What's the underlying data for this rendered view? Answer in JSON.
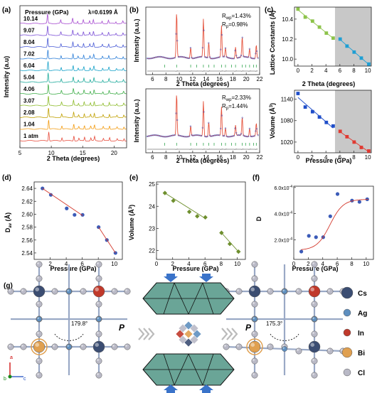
{
  "colors": {
    "green": "#8dc34a",
    "blue": "#1f9fd4",
    "darkblue": "#1f4ec9",
    "red": "#e03a32",
    "fitred": "#d43a2e",
    "olive": "#6e8f2e",
    "navy": "#3b5bb8",
    "teal": "#6aa597",
    "arrow": "#3a73c9",
    "gray_region": "#c8c8c8",
    "measured": "#2040c0",
    "calc": "#e5533d"
  },
  "icons": [
    "blue-arrow-down-icon",
    "blue-arrow-up-icon",
    "chevron-right-icon"
  ],
  "panels": {
    "a": {
      "label": "(a)"
    },
    "b": {
      "label": "(b)"
    },
    "c": {
      "label": "(c)"
    },
    "d": {
      "label": "(d)"
    },
    "e": {
      "label": "(e)"
    },
    "f": {
      "label": "(f)"
    },
    "g": {
      "label": "(g)"
    }
  },
  "chart_data": [
    {
      "id": "a",
      "type": "line",
      "title": "Pressure (GPa)",
      "annotation": "λ=0.6199 Å",
      "xlabel": "2 Theta (degrees)",
      "ylabel": "Intensity (a.u)",
      "xlim": [
        5,
        22
      ],
      "xticks": [
        5,
        10,
        15,
        20
      ],
      "peaks_2theta": [
        9.6,
        11.7,
        13.6,
        14.4,
        15.3,
        16.3,
        16.9,
        18.3,
        19.3,
        20.5,
        21.6
      ],
      "series": [
        {
          "name": "1 atm",
          "color": "#e74c3c"
        },
        {
          "name": "1.04",
          "color": "#f39c12"
        },
        {
          "name": "2.08",
          "color": "#c0a000"
        },
        {
          "name": "3.07",
          "color": "#8dbb2b"
        },
        {
          "name": "4.06",
          "color": "#3fae49"
        },
        {
          "name": "5.04",
          "color": "#1aa99a"
        },
        {
          "name": "6.04",
          "color": "#17a2c9"
        },
        {
          "name": "7.02",
          "color": "#2d7fd8"
        },
        {
          "name": "8.04",
          "color": "#4a5cd6"
        },
        {
          "name": "9.07",
          "color": "#7b4fd6"
        },
        {
          "name": "10.14",
          "color": "#a64bd0"
        }
      ]
    },
    {
      "id": "b-top",
      "type": "line",
      "xlabel": "",
      "ylabel": "Intensity (a.u.)",
      "xlim": [
        5,
        22
      ],
      "xticks": [
        6,
        8,
        10,
        12,
        14,
        16,
        18,
        20,
        22
      ],
      "rwp_label": "R",
      "rwp_sub": "wp",
      "rwp_val": "=1.43%",
      "rp_label": "R",
      "rp_sub": "p",
      "rp_val": "=0.98%"
    },
    {
      "id": "b-bottom",
      "type": "line",
      "xlabel": "2 Theta (degrees)",
      "ylabel": "Intensity (a.u.)",
      "xlim": [
        5,
        22
      ],
      "xticks": [
        6,
        8,
        10,
        12,
        14,
        16,
        18,
        20,
        22
      ],
      "rwp_label": "R",
      "rwp_sub": "wp",
      "rwp_val": "=2.33%",
      "rp_label": "R",
      "rp_sub": "p",
      "rp_val": "=1.44%"
    },
    {
      "id": "c-top",
      "type": "scatter",
      "xlabel": "",
      "ylabel": "Lattice Constants (Å)",
      "xlim": [
        -0.5,
        10.5
      ],
      "ylim": [
        9.93,
        10.52
      ],
      "xticks": [
        0,
        2,
        4,
        6,
        8,
        10
      ],
      "yticks": [
        10.0,
        10.2,
        10.4
      ],
      "shaded_from": 5.3,
      "series": [
        {
          "color": "#8dc34a",
          "x": [
            0,
            1.04,
            2.08,
            3.07,
            4.06,
            5.04
          ],
          "y": [
            10.5,
            10.42,
            10.38,
            10.32,
            10.26,
            10.21
          ]
        },
        {
          "color": "#1f9fd4",
          "x": [
            6.04,
            7.02,
            8.04,
            9.07,
            10.14
          ],
          "y": [
            10.2,
            10.13,
            10.07,
            10.01,
            9.95
          ]
        }
      ]
    },
    {
      "id": "c-bottom",
      "type": "scatter",
      "xlabel": "Pressure (GPa)",
      "ylabel": "Volume (Å3)",
      "ylabel_text": "Volume (Å",
      "ylabel_sup": "3",
      "ylabel_tail": ")",
      "xlim": [
        -0.5,
        10.5
      ],
      "ylim": [
        990,
        1165
      ],
      "xticks": [
        0,
        2,
        4,
        6,
        8,
        10
      ],
      "yticks": [
        1020,
        1080,
        1140
      ],
      "shaded_from": 5.3,
      "series": [
        {
          "color": "#1f4ec9",
          "x": [
            0,
            1.04,
            2.08,
            3.07,
            4.06,
            5.04
          ],
          "y": [
            1156,
            1118,
            1105,
            1090,
            1075,
            1065
          ]
        },
        {
          "color": "#e03a32",
          "x": [
            6.04,
            7.02,
            8.04,
            9.07,
            10.14
          ],
          "y": [
            1050,
            1035,
            1020,
            1005,
            995
          ]
        }
      ]
    },
    {
      "id": "d",
      "type": "scatter",
      "xlabel": "Pressure (GPa)",
      "ylabel": "Dav (Å)",
      "ylabel_main": "D",
      "ylabel_sub": "av",
      "ylabel_tail": " (Å)",
      "xlim": [
        0,
        11
      ],
      "ylim": [
        2.53,
        2.65
      ],
      "xticks": [
        2,
        4,
        6,
        8,
        10
      ],
      "yticks": [
        2.54,
        2.56,
        2.58,
        2.6,
        2.62,
        2.64
      ],
      "point_color": "#3b5bb8",
      "fit_color": "#d43a2e",
      "x": [
        1.04,
        2.08,
        4.06,
        5.04,
        6.04,
        8.04,
        9.07,
        10.14
      ],
      "y": [
        2.64,
        2.63,
        2.609,
        2.599,
        2.599,
        2.58,
        2.56,
        2.54
      ]
    },
    {
      "id": "e",
      "type": "scatter",
      "xlabel": "Pressure (GPa)",
      "ylabel": "Volume (Å3)",
      "ylabel_text": "Volume (Å",
      "ylabel_sup": "3",
      "ylabel_tail": ")",
      "xlim": [
        0,
        11
      ],
      "ylim": [
        21.6,
        25.1
      ],
      "xticks": [
        0,
        2,
        4,
        6,
        8,
        10
      ],
      "yticks": [
        22,
        23,
        24,
        25
      ],
      "point_color": "#6e8f2e",
      "x": [
        1.04,
        2.08,
        4.06,
        5.04,
        6.04,
        8.04,
        9.07,
        10.14
      ],
      "y": [
        24.6,
        24.25,
        23.75,
        23.55,
        23.5,
        22.8,
        22.3,
        21.95
      ]
    },
    {
      "id": "f",
      "type": "scatter",
      "xlabel": "Pressure (GPa)",
      "ylabel": "D",
      "xlim": [
        0,
        11
      ],
      "ylim": [
        5e-05,
        0.00061
      ],
      "xticks": [
        0,
        2,
        4,
        6,
        8,
        10
      ],
      "yticks": [
        0.0002,
        0.0004,
        0.0006
      ],
      "ytick_labels": [
        "2.0x10",
        "4.0x10",
        "6.0x10"
      ],
      "ytick_exp": "-4",
      "point_color": "#3b5bb8",
      "fit_color": "#d43a2e",
      "x": [
        1.04,
        2.08,
        3.07,
        4.06,
        5.04,
        6.04,
        8.04,
        9.07,
        10.14
      ],
      "y": [
        0.00011,
        0.00023,
        0.00022,
        0.00022,
        0.00038,
        0.00055,
        0.0005,
        0.00049,
        0.00051
      ]
    }
  ],
  "g": {
    "angle_left": "179.8°",
    "angle_right": "175.3°",
    "p_label": "P",
    "axis_a": "a",
    "axis_b": "b",
    "axis_c": "c",
    "legend": [
      {
        "label": "Cs",
        "color": "#3b4d72"
      },
      {
        "label": "Ag",
        "color": "#5e8fbf"
      },
      {
        "label": "In",
        "color": "#c0392b"
      },
      {
        "label": "Bi",
        "color": "#e0a050"
      },
      {
        "label": "Cl",
        "color": "#b9b9c6"
      }
    ]
  }
}
